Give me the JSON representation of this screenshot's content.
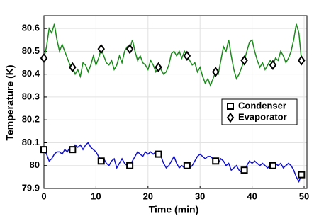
{
  "chart_data": {
    "type": "line",
    "xlabel": "Time (min)",
    "ylabel": "Temperature (K)",
    "x": [
      0,
      0.5,
      1,
      1.5,
      2,
      2.5,
      3,
      3.5,
      4,
      4.5,
      5,
      5.5,
      6,
      6.5,
      7,
      7.5,
      8,
      8.5,
      9,
      9.5,
      10,
      10.5,
      11,
      11.5,
      12,
      12.5,
      13,
      13.5,
      14,
      14.5,
      15,
      15.5,
      16,
      16.5,
      17,
      17.5,
      18,
      18.5,
      19,
      19.5,
      20,
      20.5,
      21,
      21.5,
      22,
      22.5,
      23,
      23.5,
      24,
      24.5,
      25,
      25.5,
      26,
      26.5,
      27,
      27.5,
      28,
      28.5,
      29,
      29.5,
      30,
      30.5,
      31,
      31.5,
      32,
      32.5,
      33,
      33.5,
      34,
      34.5,
      35,
      35.5,
      36,
      36.5,
      37,
      37.5,
      38,
      38.5,
      39,
      39.5,
      40,
      40.5,
      41,
      41.5,
      42,
      42.5,
      43,
      43.5,
      44,
      44.5,
      45,
      45.5,
      46,
      46.5,
      47,
      47.5,
      48,
      48.5,
      49,
      49.5,
      50
    ],
    "series": [
      {
        "name": "Condenser",
        "color": "#1010d0",
        "marker": "square",
        "values": [
          80.07,
          80.05,
          80.02,
          80.03,
          80.05,
          80.06,
          80.06,
          80.05,
          80.07,
          80.06,
          80.08,
          80.07,
          80.09,
          80.08,
          80.09,
          80.07,
          80.09,
          80.1,
          80.08,
          80.07,
          80.06,
          80.04,
          80.02,
          80.03,
          80.01,
          80.0,
          80.02,
          80.03,
          79.99,
          80.01,
          80.03,
          80.01,
          80.0,
          80.0,
          80.02,
          80.04,
          80.06,
          80.05,
          80.04,
          80.06,
          80.05,
          80.06,
          80.05,
          80.06,
          80.05,
          80.04,
          80.01,
          79.99,
          80.0,
          80.02,
          80.04,
          80.01,
          79.99,
          80.0,
          79.99,
          80.0,
          79.99,
          80.0,
          80.02,
          80.04,
          80.05,
          80.04,
          80.03,
          80.04,
          80.04,
          80.03,
          80.02,
          80.01,
          80.03,
          80.02,
          80.0,
          80.01,
          79.98,
          79.99,
          80.0,
          79.98,
          79.97,
          79.98,
          80.0,
          80.02,
          80.01,
          80.02,
          80.01,
          80.0,
          80.01,
          80.0,
          79.99,
          80.0,
          80.0,
          80.01,
          80.0,
          80.01,
          79.99,
          80.0,
          80.01,
          80.0,
          79.98,
          79.95,
          79.93,
          79.96,
          79.97
        ]
      },
      {
        "name": "Evaporator",
        "color": "#1a8a1a",
        "marker": "diamond",
        "values": [
          80.47,
          80.52,
          80.6,
          80.58,
          80.62,
          80.55,
          80.5,
          80.53,
          80.5,
          80.47,
          80.44,
          80.43,
          80.4,
          80.42,
          80.39,
          80.45,
          80.44,
          80.41,
          80.44,
          80.48,
          80.44,
          80.47,
          80.51,
          80.48,
          80.45,
          80.44,
          80.46,
          80.42,
          80.44,
          80.48,
          80.45,
          80.5,
          80.52,
          80.51,
          80.55,
          80.5,
          80.46,
          80.48,
          80.45,
          80.44,
          80.42,
          80.46,
          80.44,
          80.41,
          80.43,
          80.42,
          80.4,
          80.41,
          80.44,
          80.49,
          80.5,
          80.48,
          80.5,
          80.47,
          80.5,
          80.48,
          80.46,
          80.44,
          80.45,
          80.41,
          80.43,
          80.39,
          80.36,
          80.38,
          80.35,
          80.38,
          80.41,
          80.4,
          80.46,
          80.52,
          80.5,
          80.55,
          80.48,
          80.42,
          80.38,
          80.4,
          80.43,
          80.46,
          80.5,
          80.54,
          80.55,
          80.5,
          80.46,
          80.43,
          80.45,
          80.42,
          80.44,
          80.46,
          80.44,
          80.47,
          80.46,
          80.5,
          80.48,
          80.45,
          80.47,
          80.5,
          80.55,
          80.62,
          80.58,
          80.46,
          80.46
        ]
      }
    ],
    "markevery": 11,
    "xlim": [
      0,
      50
    ],
    "xticks": [
      0,
      10,
      20,
      30,
      40,
      50
    ],
    "ylim": [
      79.9,
      80.65
    ],
    "yticks": [
      79.9,
      80,
      80.1,
      80.2,
      80.3,
      80.4,
      80.5,
      80.6
    ],
    "grid": true,
    "legend": "right"
  }
}
